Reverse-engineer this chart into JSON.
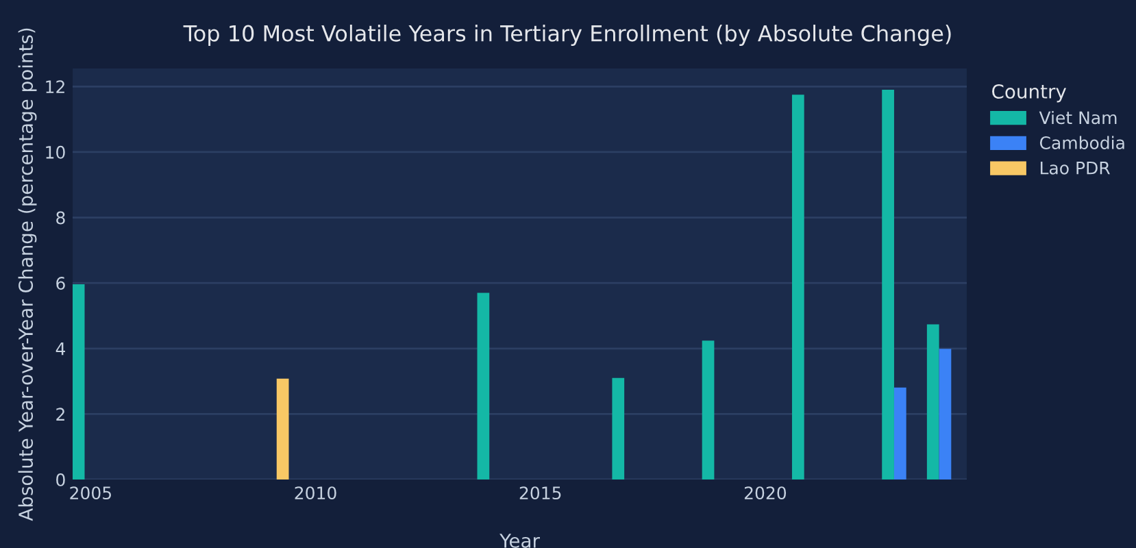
{
  "chart_data": {
    "type": "bar",
    "title": "Top 10 Most Volatile Years in Tertiary Enrollment (by Absolute Change)",
    "xlabel": "Year",
    "ylabel": "Absolute Year-over-Year Change (percentage points)",
    "legend_title": "Country",
    "legend": "right",
    "grid": "y",
    "xlim": [
      2004.6,
      2024.48
    ],
    "xticks": [
      2005,
      2010,
      2015,
      2020
    ],
    "ylim": [
      0,
      12.55
    ],
    "yticks": [
      0,
      2,
      4,
      6,
      8,
      10,
      12
    ],
    "series": [
      {
        "name": "Viet Nam",
        "color": "#14b8a6",
        "x": [
          2005,
          2014,
          2017,
          2019,
          2021,
          2023,
          2024
        ],
        "values": [
          5.96,
          5.7,
          3.1,
          4.24,
          11.75,
          11.9,
          4.74
        ]
      },
      {
        "name": "Cambodia",
        "color": "#3b82f6",
        "x": [
          2023,
          2024
        ],
        "values": [
          2.81,
          3.99
        ]
      },
      {
        "name": "Lao PDR",
        "color": "#f8c865",
        "x": [
          2009
        ],
        "values": [
          3.08
        ]
      }
    ]
  }
}
